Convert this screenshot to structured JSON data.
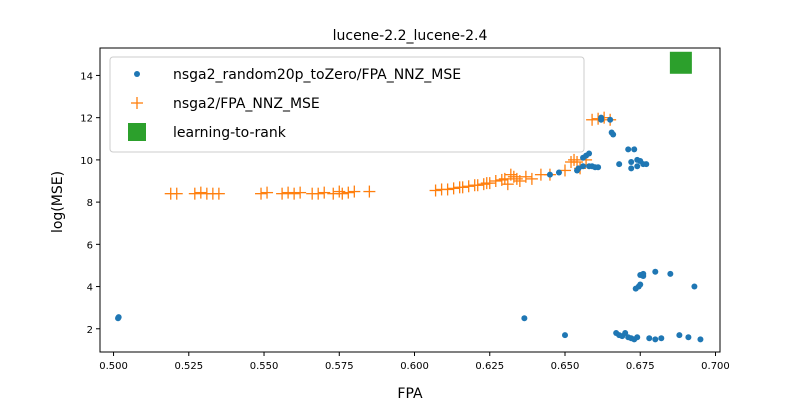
{
  "chart_data": {
    "type": "scatter",
    "title": "lucene-2.2_lucene-2.4",
    "xlabel": "FPA",
    "ylabel": "log(MSE)",
    "xlim": [
      0.4955,
      0.7015
    ],
    "ylim": [
      0.9,
      15.3
    ],
    "xticks": [
      0.5,
      0.525,
      0.55,
      0.575,
      0.6,
      0.625,
      0.65,
      0.675,
      0.7
    ],
    "xtick_labels": [
      "0.500",
      "0.525",
      "0.550",
      "0.575",
      "0.600",
      "0.625",
      "0.650",
      "0.675",
      "0.700"
    ],
    "yticks": [
      2,
      4,
      6,
      8,
      10,
      12,
      14
    ],
    "ytick_labels": [
      "2",
      "4",
      "6",
      "8",
      "10",
      "12",
      "14"
    ],
    "grid": false,
    "legend_position": "top-left",
    "series": [
      {
        "name": "nsga2_random20p_toZero/FPA_NNZ_MSE",
        "marker": "circle",
        "color": "#1f77b4",
        "x": [
          0.5015,
          0.5017,
          0.6365,
          0.65,
          0.645,
          0.648,
          0.654,
          0.6545,
          0.656,
          0.658,
          0.659,
          0.66,
          0.661,
          0.656,
          0.657,
          0.658,
          0.662,
          0.662,
          0.665,
          0.6655,
          0.666,
          0.668,
          0.671,
          0.673,
          0.672,
          0.674,
          0.675,
          0.676,
          0.677,
          0.674,
          0.676,
          0.675,
          0.672,
          0.676,
          0.68,
          0.685,
          0.693,
          0.6735,
          0.6745,
          0.675,
          0.667,
          0.668,
          0.669,
          0.67,
          0.671,
          0.672,
          0.673,
          0.674,
          0.678,
          0.68,
          0.682,
          0.688,
          0.691,
          0.695
        ],
        "y": [
          2.5,
          2.55,
          2.5,
          1.7,
          9.3,
          9.4,
          9.5,
          9.6,
          9.7,
          9.7,
          9.7,
          9.65,
          9.65,
          10.1,
          10.2,
          10.3,
          11.9,
          12.0,
          11.9,
          11.3,
          11.2,
          9.8,
          10.5,
          10.5,
          9.9,
          10.0,
          9.95,
          9.8,
          9.8,
          9.7,
          4.5,
          4.55,
          9.6,
          4.6,
          4.7,
          4.6,
          4.0,
          3.9,
          4.0,
          4.1,
          1.8,
          1.7,
          1.65,
          1.8,
          1.6,
          1.55,
          1.5,
          1.6,
          1.55,
          1.5,
          1.55,
          1.7,
          1.6,
          1.5
        ]
      },
      {
        "name": "nsga2/FPA_NNZ_MSE",
        "marker": "plus",
        "color": "#ff7f0e",
        "x": [
          0.519,
          0.521,
          0.527,
          0.529,
          0.531,
          0.533,
          0.535,
          0.549,
          0.551,
          0.556,
          0.558,
          0.56,
          0.562,
          0.566,
          0.568,
          0.57,
          0.573,
          0.575,
          0.576,
          0.578,
          0.58,
          0.585,
          0.607,
          0.609,
          0.611,
          0.613,
          0.615,
          0.616,
          0.618,
          0.62,
          0.621,
          0.623,
          0.624,
          0.625,
          0.627,
          0.629,
          0.63,
          0.631,
          0.632,
          0.633,
          0.634,
          0.635,
          0.637,
          0.639,
          0.642,
          0.645,
          0.65,
          0.652,
          0.653,
          0.654,
          0.655,
          0.657,
          0.659,
          0.661,
          0.663,
          0.665
        ],
        "y": [
          8.4,
          8.4,
          8.4,
          8.45,
          8.4,
          8.4,
          8.4,
          8.4,
          8.45,
          8.4,
          8.45,
          8.4,
          8.45,
          8.4,
          8.4,
          8.45,
          8.4,
          8.5,
          8.4,
          8.45,
          8.5,
          8.5,
          8.55,
          8.6,
          8.6,
          8.65,
          8.7,
          8.7,
          8.75,
          8.8,
          8.8,
          8.85,
          8.9,
          8.9,
          9.0,
          9.05,
          9.1,
          8.85,
          9.3,
          9.2,
          9.1,
          9.0,
          9.2,
          9.1,
          9.3,
          9.3,
          9.5,
          9.9,
          10.0,
          9.9,
          9.6,
          10.0,
          11.9,
          11.95,
          12.0,
          11.9
        ]
      },
      {
        "name": "learning-to-rank",
        "marker": "square",
        "color": "#2ca02c",
        "x": [
          0.6885
        ],
        "y": [
          14.6
        ]
      }
    ]
  }
}
